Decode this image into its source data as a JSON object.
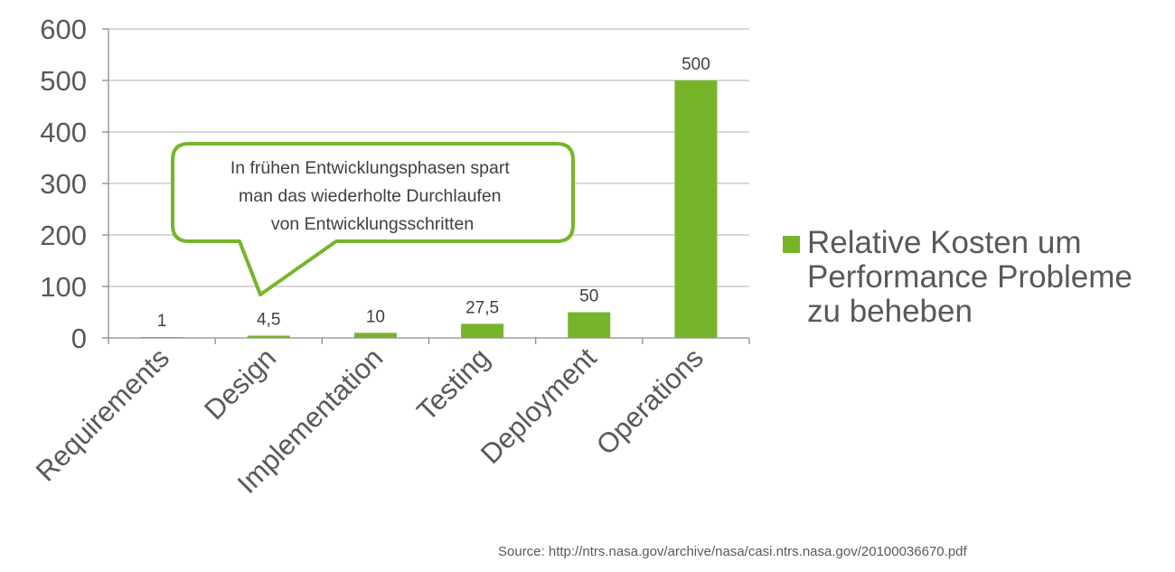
{
  "chart_data": {
    "type": "bar",
    "categories": [
      "Requirements",
      "Design",
      "Implementation",
      "Testing",
      "Deployment",
      "Operations"
    ],
    "values": [
      1,
      4.5,
      10,
      27.5,
      50,
      500
    ],
    "value_labels": [
      "1",
      "4,5",
      "10",
      "27,5",
      "50",
      "500"
    ],
    "series": [
      {
        "name": "Relative Kosten um Performance Probleme zu beheben",
        "values": [
          1,
          4.5,
          10,
          27.5,
          50,
          500
        ]
      }
    ],
    "ylim": [
      0,
      600
    ],
    "yticks": [
      0,
      100,
      200,
      300,
      400,
      500,
      600
    ],
    "ytick_labels": [
      "0",
      "100",
      "200",
      "300",
      "400",
      "500",
      "600"
    ],
    "grid": true,
    "legend_position": "right",
    "bar_color": "#76b52a",
    "annotation": {
      "lines": [
        "In frühen Entwicklungsphasen spart",
        "man das wiederholte Durchlaufen",
        "von Entwicklungsschritten"
      ],
      "points_to": "Design",
      "border_color": "#76b52a"
    },
    "source": "Source: http://ntrs.nasa.gov/archive/nasa/casi.ntrs.nasa.gov/20100036670.pdf"
  }
}
